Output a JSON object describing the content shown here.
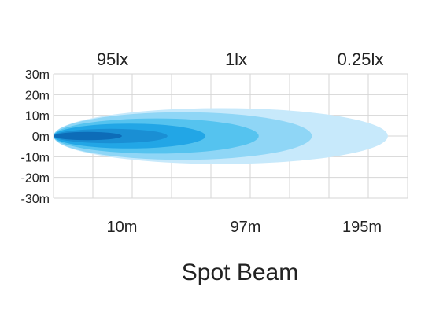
{
  "chart_data": {
    "type": "area",
    "title": "Spot Beam",
    "xlabel": "",
    "ylabel": "",
    "xlim": [
      0,
      233
    ],
    "ylim": [
      -30,
      30
    ],
    "grid": true,
    "y_ticks": [
      {
        "value": 30,
        "label": "30m"
      },
      {
        "value": 20,
        "label": "20m"
      },
      {
        "value": 10,
        "label": "10m"
      },
      {
        "value": 0,
        "label": "0m"
      },
      {
        "value": -10,
        "label": "-10m"
      },
      {
        "value": -20,
        "label": "-20m"
      },
      {
        "value": -30,
        "label": "-30m"
      }
    ],
    "x_ticks": [
      {
        "value": 10,
        "label": "10m"
      },
      {
        "value": 97,
        "label": "97m"
      },
      {
        "value": 195,
        "label": "195m"
      }
    ],
    "lux_labels": [
      {
        "value": 10,
        "label": "95lx"
      },
      {
        "value": 97,
        "label": "1lx"
      },
      {
        "value": 195,
        "label": "0.25lx"
      }
    ],
    "beam_contours": [
      {
        "name": "c1",
        "length": 45,
        "half_width": 2,
        "color": "#0d6cb8"
      },
      {
        "name": "c2",
        "length": 75,
        "half_width": 3.5,
        "color": "#1a8fd4"
      },
      {
        "name": "c3",
        "length": 100,
        "half_width": 6,
        "color": "#22a6e6"
      },
      {
        "name": "c4",
        "length": 135,
        "half_width": 8.5,
        "color": "#55c3ef"
      },
      {
        "name": "c5",
        "length": 170,
        "half_width": 11.5,
        "color": "#8fd6f6"
      },
      {
        "name": "c6",
        "length": 220,
        "half_width": 13.5,
        "color": "#c7e9fb"
      }
    ]
  }
}
